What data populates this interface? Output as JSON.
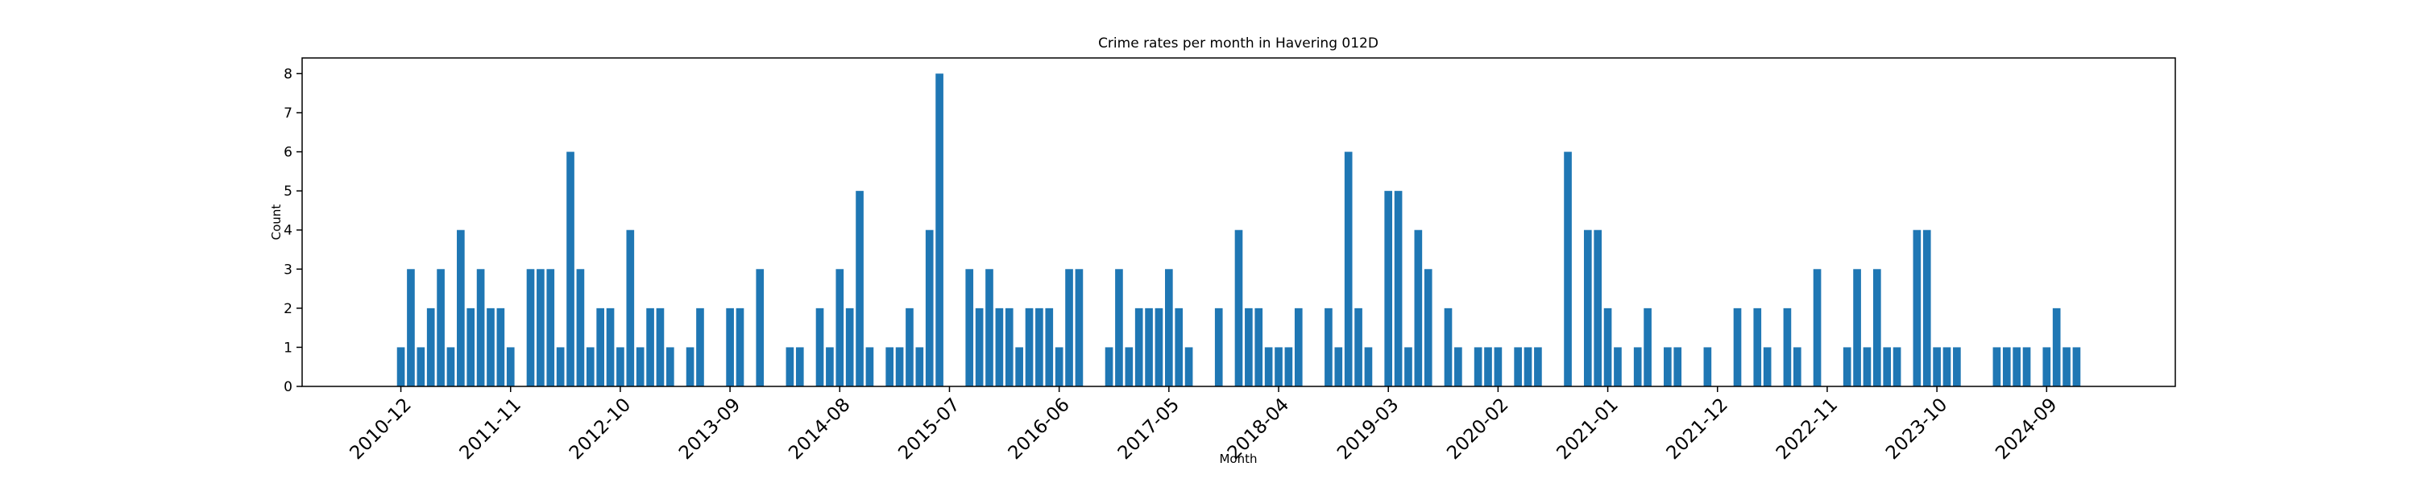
{
  "chart_data": {
    "type": "bar",
    "title": "Crime rates per month in Havering 012D",
    "xlabel": "Month",
    "ylabel": "Count",
    "color": "#1f77b4",
    "categories": [
      "2010-12",
      null,
      null,
      null,
      null,
      null,
      null,
      null,
      null,
      null,
      null,
      "2011-11",
      null,
      null,
      null,
      null,
      null,
      null,
      null,
      null,
      null,
      null,
      "2012-10",
      null,
      null,
      null,
      null,
      null,
      null,
      null,
      null,
      null,
      null,
      "2013-09",
      null,
      null,
      null,
      null,
      null,
      null,
      null,
      null,
      null,
      null,
      "2014-08",
      null,
      null,
      null,
      null,
      null,
      null,
      null,
      null,
      null,
      null,
      "2015-07",
      null,
      null,
      null,
      null,
      null,
      null,
      null,
      null,
      null,
      null,
      "2016-06",
      null,
      null,
      null,
      null,
      null,
      null,
      null,
      null,
      null,
      null,
      "2017-05",
      null,
      null,
      null,
      null,
      null,
      null,
      null,
      null,
      null,
      null,
      "2018-04",
      null,
      null,
      null,
      null,
      null,
      null,
      null,
      null,
      null,
      null,
      "2019-03",
      null,
      null,
      null,
      null,
      null,
      null,
      null,
      null,
      null,
      null,
      "2020-02",
      null,
      null,
      null,
      null,
      null,
      null,
      null,
      null,
      null,
      null,
      "2021-01",
      null,
      null,
      null,
      null,
      null,
      null,
      null,
      null,
      null,
      null,
      "2021-12",
      null,
      null,
      null,
      null,
      null,
      null,
      null,
      null,
      null,
      null,
      "2022-11",
      null,
      null,
      null,
      null,
      null,
      null,
      null,
      null,
      null,
      null,
      "2023-10",
      null,
      null,
      null,
      null,
      null,
      null,
      null,
      null,
      null,
      null,
      "2024-09",
      null,
      null,
      null
    ],
    "values": [
      1,
      3,
      1,
      2,
      3,
      1,
      4,
      2,
      3,
      2,
      2,
      1,
      0,
      3,
      3,
      3,
      1,
      6,
      3,
      1,
      2,
      2,
      1,
      4,
      1,
      2,
      2,
      1,
      0,
      1,
      2,
      0,
      0,
      2,
      2,
      0,
      3,
      0,
      0,
      1,
      1,
      0,
      2,
      1,
      3,
      2,
      5,
      1,
      0,
      1,
      1,
      2,
      1,
      4,
      8,
      0,
      0,
      3,
      2,
      3,
      2,
      2,
      1,
      2,
      2,
      2,
      1,
      3,
      3,
      0,
      0,
      1,
      3,
      1,
      2,
      2,
      2,
      3,
      2,
      1,
      0,
      0,
      2,
      0,
      4,
      2,
      2,
      1,
      1,
      1,
      2,
      0,
      0,
      2,
      1,
      6,
      2,
      1,
      0,
      5,
      5,
      1,
      4,
      3,
      0,
      2,
      1,
      0,
      1,
      1,
      1,
      0,
      1,
      1,
      1,
      0,
      0,
      6,
      0,
      4,
      4,
      2,
      1,
      0,
      1,
      2,
      0,
      1,
      1,
      0,
      0,
      1,
      0,
      0,
      2,
      0,
      2,
      1,
      0,
      2,
      1,
      0,
      3,
      0,
      0,
      1,
      3,
      1,
      3,
      1,
      1,
      0,
      4,
      4,
      1,
      1,
      1,
      0,
      0,
      0,
      1,
      1,
      1,
      1,
      0,
      1,
      2,
      1,
      1
    ],
    "ylim": [
      0,
      8.4
    ],
    "yticks": [
      0,
      1,
      2,
      3,
      4,
      5,
      6,
      7,
      8
    ]
  }
}
